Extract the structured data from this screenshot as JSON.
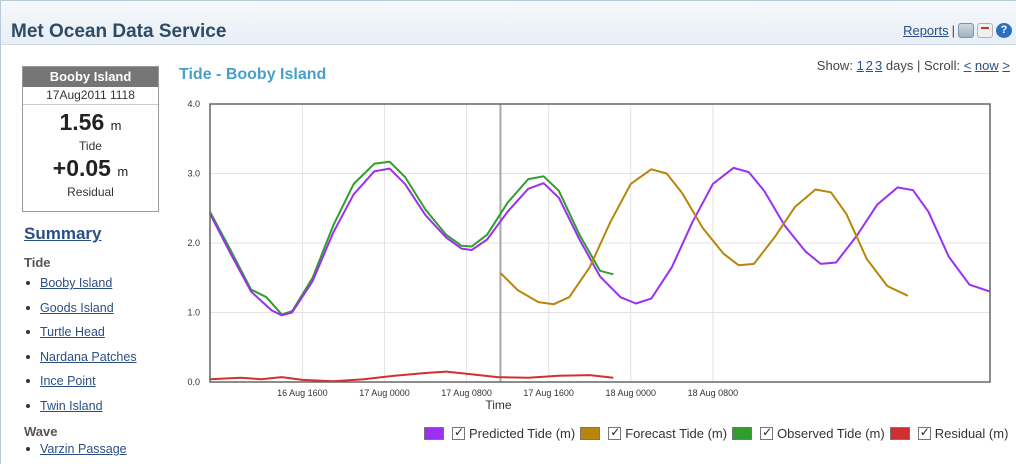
{
  "header": {
    "title": "Met Ocean Data Service",
    "reports_label": "Reports",
    "separator": "|",
    "icons": [
      "print-icon",
      "pdf-icon",
      "help-icon"
    ]
  },
  "station": {
    "name": "Booby Island",
    "datetime": "17Aug2011 1118",
    "tide_value": "1.56",
    "tide_unit": "m",
    "tide_label": "Tide",
    "residual_value": "+0.05",
    "residual_unit": "m",
    "residual_label": "Residual"
  },
  "sidebar": {
    "summary_label": "Summary",
    "tide_heading": "Tide",
    "tide_items": [
      "Booby Island",
      "Goods Island",
      "Turtle Head",
      "Nardana Patches",
      "Ince Point",
      "Twin Island"
    ],
    "wave_heading": "Wave",
    "wave_items": [
      "Varzin Passage"
    ]
  },
  "chart_controls": {
    "show_label": "Show:",
    "days": [
      "1",
      "2",
      "3"
    ],
    "days_suffix": "days | Scroll:",
    "prev": "<",
    "now": "now",
    "next": ">"
  },
  "chart_data": {
    "type": "line",
    "title": "Tide - Booby Island",
    "xlabel": "Time",
    "ylabel": "",
    "ylim": [
      0.0,
      4.0
    ],
    "yticks": [
      "0.0",
      "1.0",
      "2.0",
      "3.0",
      "4.0"
    ],
    "xticks": [
      "16 Aug 1600",
      "17 Aug 0000",
      "17 Aug 0800",
      "17 Aug 1600",
      "18 Aug 0000",
      "18 Aug 0800"
    ],
    "xrange_hours": [
      "16 Aug 0700",
      "18 Aug 1100"
    ],
    "now_marker": "17 Aug 1118",
    "grid": true,
    "legend_position": "bottom",
    "series": [
      {
        "name": "Predicted Tide (m)",
        "color": "#9b30f0",
        "points": [
          [
            0,
            2.42
          ],
          [
            2,
            1.85
          ],
          [
            4,
            1.3
          ],
          [
            6,
            1.03
          ],
          [
            7,
            0.96
          ],
          [
            8,
            1.0
          ],
          [
            10,
            1.45
          ],
          [
            12,
            2.15
          ],
          [
            14,
            2.7
          ],
          [
            16,
            3.03
          ],
          [
            17.5,
            3.07
          ],
          [
            19,
            2.85
          ],
          [
            21,
            2.4
          ],
          [
            23,
            2.08
          ],
          [
            24.5,
            1.92
          ],
          [
            25.5,
            1.9
          ],
          [
            27,
            2.05
          ],
          [
            29,
            2.45
          ],
          [
            31,
            2.78
          ],
          [
            32.5,
            2.86
          ],
          [
            34,
            2.65
          ],
          [
            36,
            2.05
          ],
          [
            38,
            1.52
          ],
          [
            40,
            1.22
          ],
          [
            41.5,
            1.13
          ],
          [
            43,
            1.2
          ],
          [
            45,
            1.65
          ],
          [
            47,
            2.3
          ],
          [
            49,
            2.85
          ],
          [
            51,
            3.08
          ],
          [
            52.5,
            3.02
          ],
          [
            54,
            2.75
          ],
          [
            56,
            2.25
          ],
          [
            58,
            1.88
          ],
          [
            59.5,
            1.7
          ],
          [
            61,
            1.72
          ],
          [
            63,
            2.1
          ],
          [
            65,
            2.55
          ],
          [
            67,
            2.8
          ],
          [
            68.5,
            2.76
          ],
          [
            70,
            2.45
          ],
          [
            72,
            1.8
          ],
          [
            74,
            1.4
          ],
          [
            76,
            1.3
          ]
        ]
      },
      {
        "name": "Forecast Tide (m)",
        "color": "#b8860b",
        "points": [
          [
            28.3,
            1.57
          ],
          [
            30,
            1.32
          ],
          [
            32,
            1.15
          ],
          [
            33.5,
            1.12
          ],
          [
            35,
            1.22
          ],
          [
            37,
            1.65
          ],
          [
            39,
            2.3
          ],
          [
            41,
            2.85
          ],
          [
            43,
            3.06
          ],
          [
            44.5,
            3.0
          ],
          [
            46,
            2.72
          ],
          [
            48,
            2.22
          ],
          [
            50,
            1.85
          ],
          [
            51.5,
            1.68
          ],
          [
            53,
            1.7
          ],
          [
            55,
            2.08
          ],
          [
            57,
            2.52
          ],
          [
            59,
            2.77
          ],
          [
            60.5,
            2.73
          ],
          [
            62,
            2.42
          ],
          [
            64,
            1.77
          ],
          [
            66,
            1.38
          ],
          [
            68,
            1.24
          ]
        ]
      },
      {
        "name": "Observed Tide (m)",
        "color": "#2f9e2f",
        "points": [
          [
            0,
            2.45
          ],
          [
            2,
            1.9
          ],
          [
            4,
            1.33
          ],
          [
            5.5,
            1.22
          ],
          [
            7,
            0.97
          ],
          [
            8,
            1.02
          ],
          [
            10,
            1.5
          ],
          [
            12,
            2.25
          ],
          [
            14,
            2.85
          ],
          [
            16,
            3.14
          ],
          [
            17.5,
            3.17
          ],
          [
            19,
            2.95
          ],
          [
            21,
            2.48
          ],
          [
            23,
            2.12
          ],
          [
            24.5,
            1.96
          ],
          [
            25.5,
            1.95
          ],
          [
            27,
            2.12
          ],
          [
            29,
            2.58
          ],
          [
            31,
            2.92
          ],
          [
            32.5,
            2.96
          ],
          [
            34,
            2.75
          ],
          [
            36,
            2.12
          ],
          [
            38,
            1.6
          ],
          [
            39.3,
            1.55
          ]
        ]
      },
      {
        "name": "Residual (m)",
        "color": "#d03030",
        "points": [
          [
            0,
            0.04
          ],
          [
            3,
            0.06
          ],
          [
            5,
            0.04
          ],
          [
            7,
            0.07
          ],
          [
            9,
            0.03
          ],
          [
            12,
            0.01
          ],
          [
            15,
            0.04
          ],
          [
            18,
            0.09
          ],
          [
            21,
            0.13
          ],
          [
            23,
            0.15
          ],
          [
            25,
            0.12
          ],
          [
            28,
            0.07
          ],
          [
            31,
            0.06
          ],
          [
            34,
            0.09
          ],
          [
            37,
            0.1
          ],
          [
            39.3,
            0.06
          ]
        ]
      }
    ]
  }
}
